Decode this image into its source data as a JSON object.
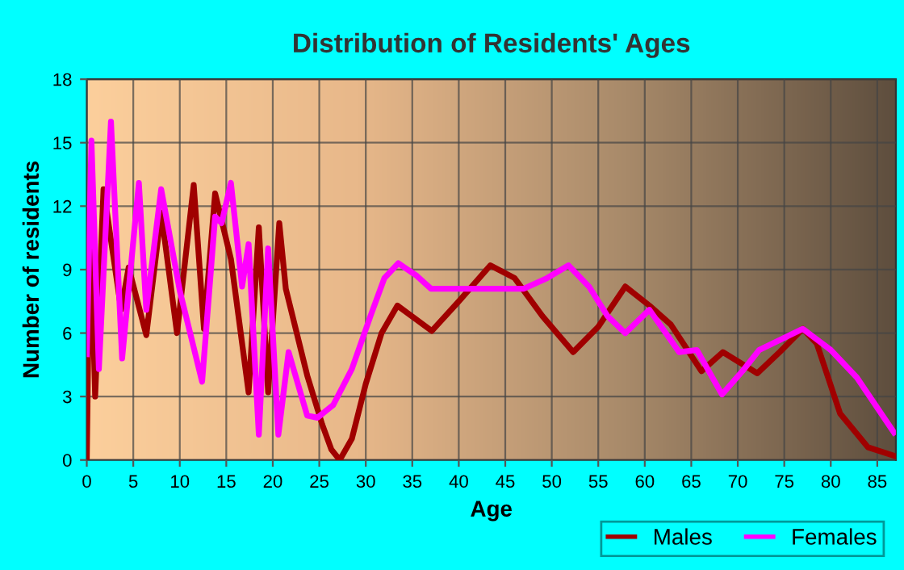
{
  "chart_data": {
    "type": "line",
    "title": "Distribution of Residents' Ages",
    "xlabel": "Age",
    "ylabel": "Number of residents",
    "xlim": [
      0,
      87
    ],
    "ylim": [
      0,
      18
    ],
    "xticks": [
      0,
      5,
      10,
      15,
      20,
      25,
      30,
      35,
      40,
      45,
      50,
      55,
      60,
      65,
      70,
      75,
      80,
      85
    ],
    "yticks": [
      0,
      3,
      6,
      9,
      12,
      15,
      18
    ],
    "grid": true,
    "legend": "bottom right",
    "marker": "none",
    "line_style": "solid",
    "series": [
      {
        "name": "Males",
        "color": "#a00000",
        "x": [
          0,
          0.35,
          0.9,
          1.8,
          3.7,
          4.5,
          6.4,
          8,
          9.7,
          11.5,
          12.6,
          13.8,
          15.5,
          17.4,
          18.5,
          19.5,
          20.7,
          21.4,
          23.7,
          25.3,
          26.3,
          27.2,
          28.5,
          30,
          31.7,
          33.4,
          37.1,
          40,
          43.4,
          46,
          49,
          52.3,
          55,
          57.9,
          60.5,
          62.8,
          66.1,
          68.4,
          72.1,
          74.5,
          77,
          78.5,
          81,
          84,
          86.8
        ],
        "values": [
          0,
          12,
          3,
          12.8,
          7.1,
          9.1,
          5.9,
          11.7,
          6,
          13,
          6.2,
          12.6,
          9.5,
          3.2,
          11,
          3.2,
          11.2,
          8.1,
          4,
          1.7,
          0.5,
          0,
          1,
          3.6,
          6,
          7.3,
          6.1,
          7.5,
          9.2,
          8.6,
          6.8,
          5.1,
          6.3,
          8.2,
          7.3,
          6.4,
          4.2,
          5.1,
          4.1,
          5.1,
          6.2,
          5.5,
          2.2,
          0.6,
          0.2
        ]
      },
      {
        "name": "Females",
        "color": "#ff00ff",
        "x": [
          0,
          0.5,
          1.3,
          2.6,
          3.8,
          5.6,
          6.4,
          8,
          10,
          12.4,
          13.8,
          14.5,
          15.5,
          16.7,
          17.4,
          18.5,
          19.5,
          20.6,
          21.7,
          23.7,
          24.8,
          26.5,
          28.5,
          30.5,
          32,
          33.5,
          35.5,
          37,
          47,
          49.5,
          51.8,
          54,
          56,
          57.9,
          60.5,
          63.7,
          65.6,
          68.3,
          70.5,
          72.3,
          77,
          80,
          82.8,
          86.8
        ],
        "values": [
          5,
          15.1,
          4.3,
          16,
          4.8,
          13.1,
          7.1,
          12.8,
          8,
          3.7,
          11.5,
          11.2,
          13.1,
          8.2,
          10.2,
          1.2,
          10,
          1.2,
          5.1,
          2.1,
          2,
          2.6,
          4.3,
          6.8,
          8.6,
          9.3,
          8.7,
          8.1,
          8.1,
          8.6,
          9.2,
          8.2,
          6.8,
          6,
          7.1,
          5.1,
          5.2,
          3.1,
          4.2,
          5.2,
          6.2,
          5.2,
          3.9,
          1.3
        ]
      }
    ]
  }
}
